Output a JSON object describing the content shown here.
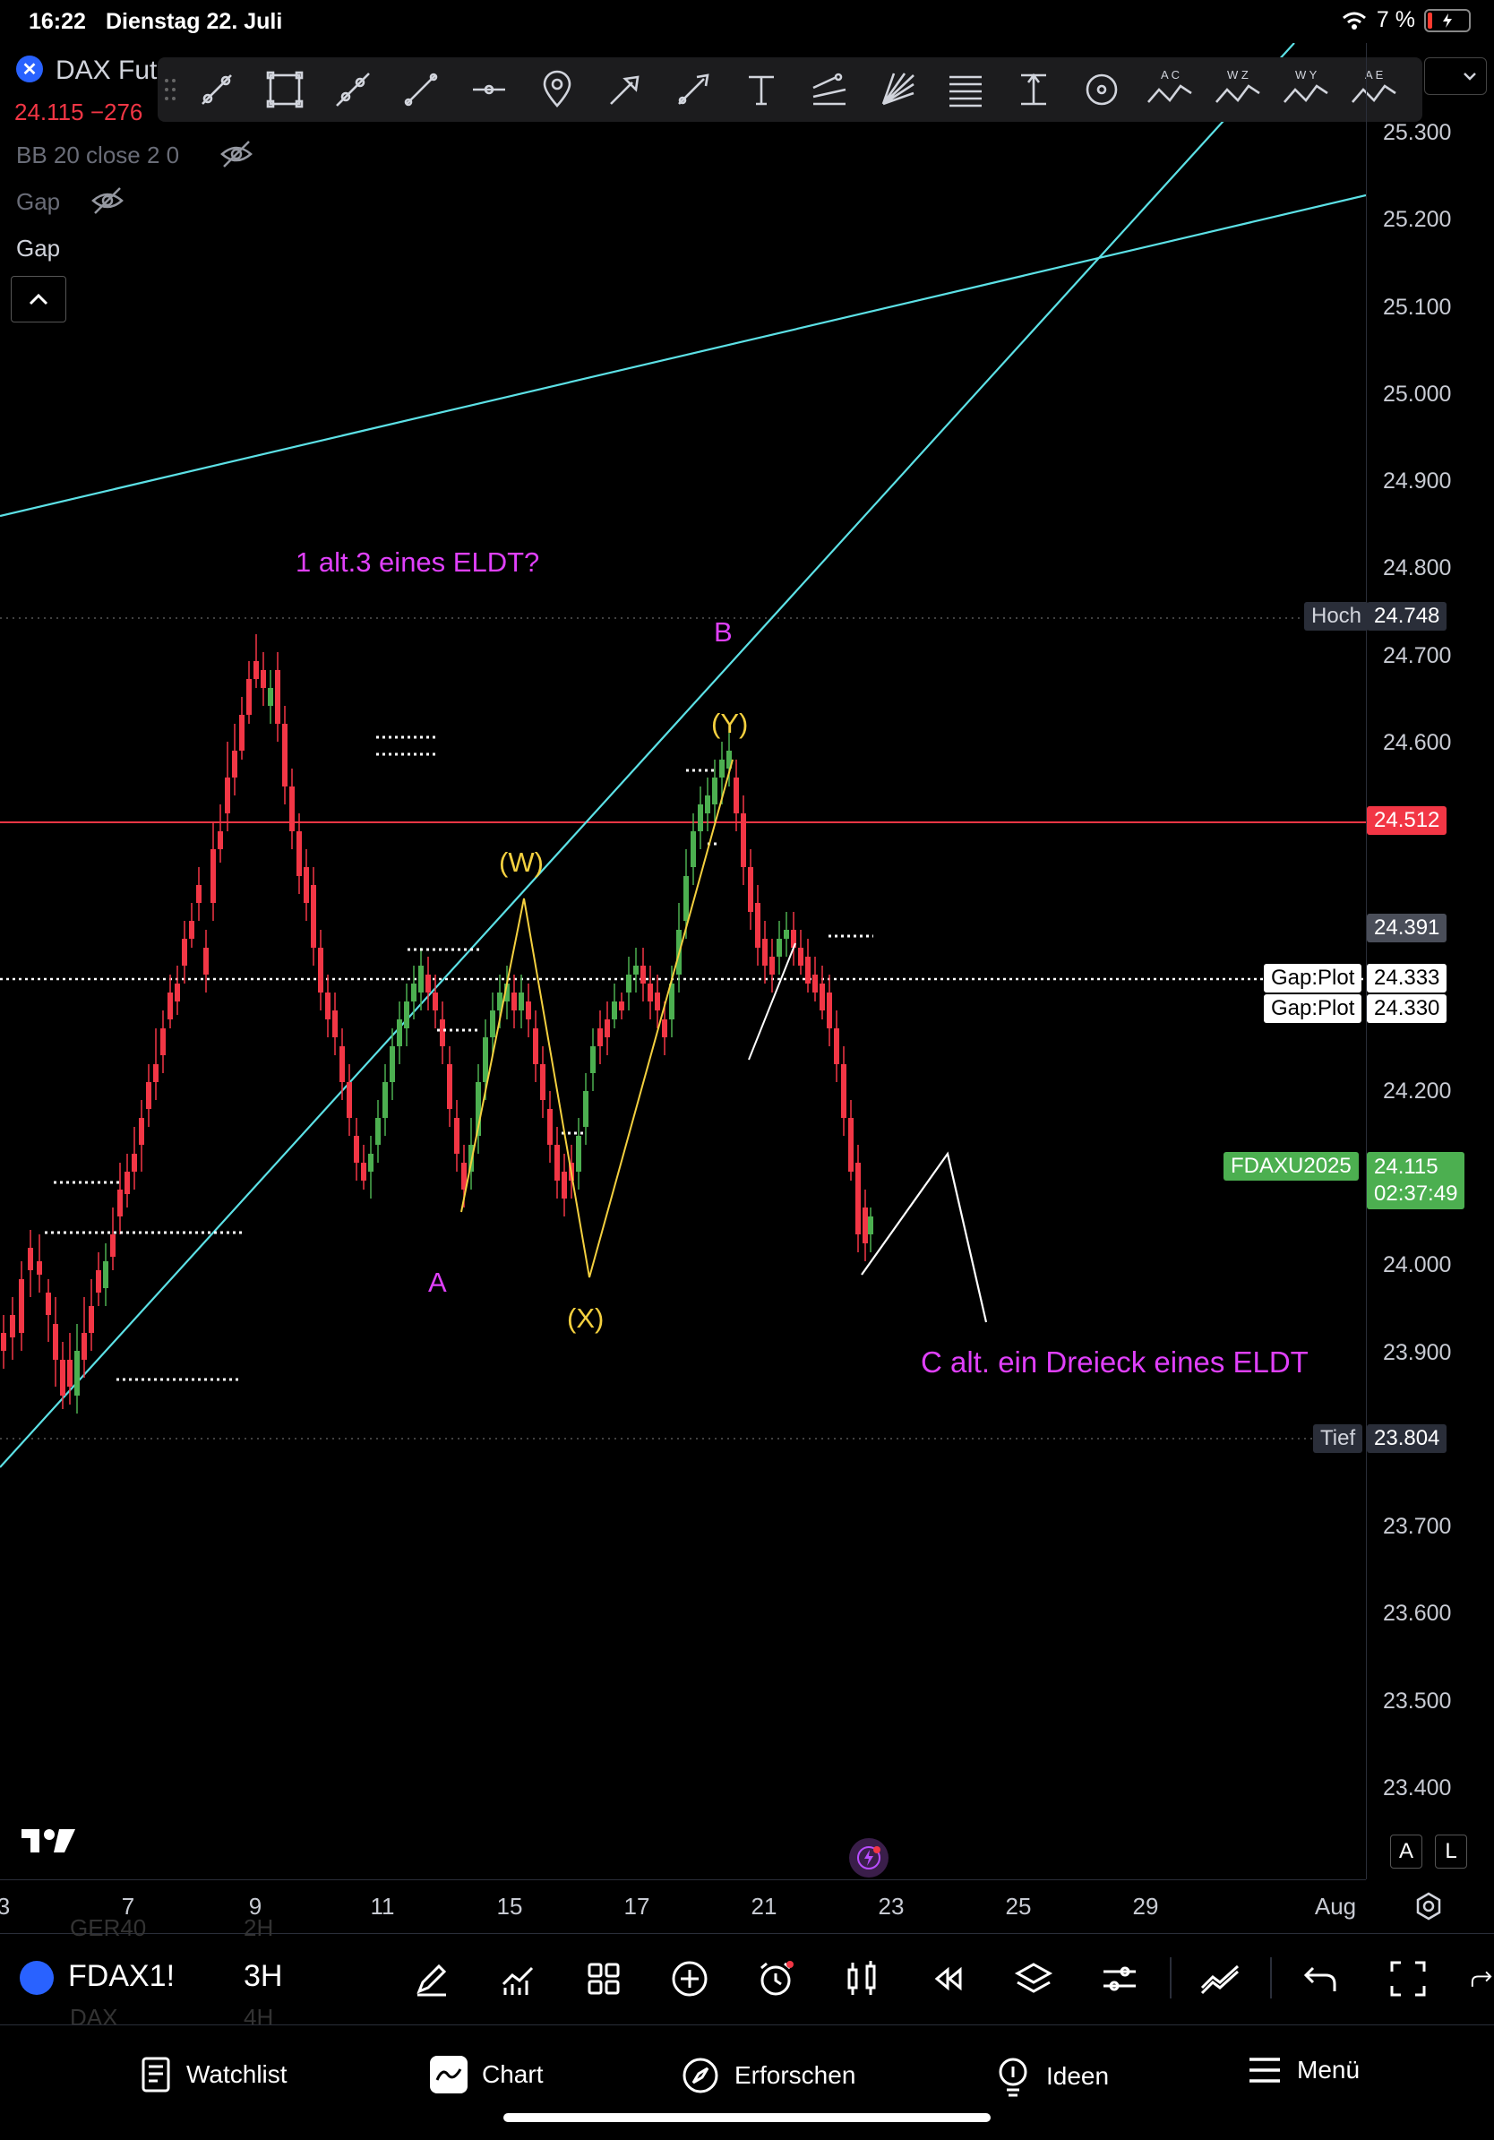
{
  "status_bar": {
    "time": "16:22",
    "date": "Dienstag 22. Juli",
    "battery": "7 %"
  },
  "legend": {
    "symbol": "DAX Fut",
    "price_line": "24.115 −276",
    "indicator1": "BB 20 close 2 0",
    "indicator2": "Gap",
    "indicator3": "Gap"
  },
  "drawing_tools": [
    "trend-line-icon",
    "rectangle-icon",
    "ray-icon",
    "extended-line-icon",
    "horizontal-ray-icon",
    "pin-icon",
    "arrow-icon",
    "arrow-marker-icon",
    "text-icon",
    "parallel-channel-icon",
    "fib-fan-icon",
    "fib-retracement-icon",
    "measure-icon",
    "circle-icon",
    "elliott-ac-icon",
    "elliott-wz-icon",
    "elliott-wy-icon",
    "elliott-ae-icon"
  ],
  "elliott_tool_labels": {
    "ac": "A C",
    "wz": "W Z",
    "wy": "W Y",
    "ae": "A E"
  },
  "price_axis": {
    "ticks": [
      "25.300",
      "25.200",
      "25.100",
      "25.000",
      "24.900",
      "24.800",
      "24.700",
      "24.600",
      "24.200",
      "24.000",
      "23.900",
      "23.700",
      "23.600",
      "23.500",
      "23.400"
    ],
    "high_label": "Hoch",
    "high_value": "24.748",
    "red_line_value": "24.512",
    "gray_value": "24.391",
    "gap_label_1": "Gap:Plot",
    "gap_value_1": "24.333",
    "gap_label_2": "Gap:Plot",
    "gap_value_2": "24.330",
    "symbol_label": "FDAXU2025",
    "current_price": "24.115",
    "countdown": "02:37:49",
    "low_label": "Tief",
    "low_value": "23.804",
    "auto_btn": "A",
    "log_btn": "L"
  },
  "annotations": {
    "wave1": "1 alt.3 eines ELDT?",
    "B": "B",
    "A": "A",
    "W": "(W)",
    "X": "(X)",
    "Y": "(Y)",
    "C": "C alt. ein Dreieck eines ELDT"
  },
  "time_axis": [
    "3",
    "7",
    "9",
    "11",
    "15",
    "17",
    "21",
    "23",
    "25",
    "29",
    "Aug"
  ],
  "bottom_toolbar": {
    "symbol": "FDAX1!",
    "interval": "3H",
    "prev_symbol": "GER40",
    "prev_interval": "2H",
    "next_symbol": "DAX",
    "next_interval": "4H"
  },
  "tabs": {
    "watchlist": "Watchlist",
    "chart": "Chart",
    "explore": "Erforschen",
    "ideas": "Ideen",
    "menu": "Menü"
  },
  "colors": {
    "up": "#4caf50",
    "down": "#f23645",
    "cyan": "#5ce1e6",
    "magenta": "#e040fb",
    "yellow": "#f4d03f",
    "red_line": "#f23645",
    "green_pill": "#4caf50"
  },
  "chart_data": {
    "type": "candlestick",
    "high": 24748,
    "low": 23804,
    "last": 24115,
    "ylim": [
      23380,
      25330
    ]
  }
}
